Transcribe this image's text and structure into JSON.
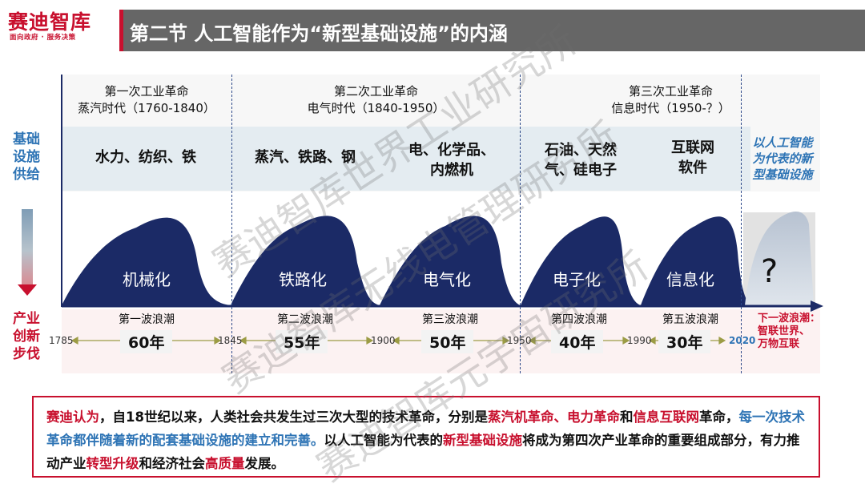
{
  "brand": {
    "name": "赛迪智库",
    "tagline": "面向政府 · 服务决策"
  },
  "title": "第二节  人工智能作为“新型基础设施”的内涵",
  "side_labels": {
    "top": [
      "基础",
      "设施",
      "供给"
    ],
    "bottom": [
      "产业",
      "创新",
      "步伐"
    ]
  },
  "eras": [
    {
      "name": "第一次工业革命",
      "period": "蒸汽时代（1760-1840）"
    },
    {
      "name": "第二次工业革命",
      "period": "电气时代（1840-1950）"
    },
    {
      "name": "第三次工业革命",
      "period": "信息时代（1950-？）"
    }
  ],
  "infrastructure": [
    {
      "text": "水力、纺织、铁"
    },
    {
      "text": "蒸汽、铁路、钢"
    },
    {
      "line1": "电、化学品、",
      "line2": "内燃机"
    },
    {
      "line1": "石油、天然",
      "line2": "气、硅电子"
    },
    {
      "line1": "互联网",
      "line2": "软件"
    },
    {
      "line1": "以人工智能",
      "line2": "为代表的新",
      "line3": "型基础设施"
    }
  ],
  "waves": [
    {
      "label": "机械化",
      "name": "第一波浪潮",
      "duration": "60年"
    },
    {
      "label": "铁路化",
      "name": "第二波浪潮",
      "duration": "55年"
    },
    {
      "label": "电气化",
      "name": "第三波浪潮",
      "duration": "50年"
    },
    {
      "label": "电子化",
      "name": "第四波浪潮",
      "duration": "40年"
    },
    {
      "label": "信息化",
      "name": "第五波浪潮",
      "duration": "30年"
    },
    {
      "label": "?"
    }
  ],
  "years": [
    "1785",
    "1845",
    "1900",
    "1950",
    "1990",
    "2020"
  ],
  "next_wave": {
    "line1": "下一波浪潮：",
    "line2": "智联世界、",
    "line3": "万物互联"
  },
  "summary": {
    "s1": "赛迪认为",
    "s2": "，自18世纪以来，人类社会共发生过三次大型的技术革命，分别是",
    "s3": "蒸汽机革命、电力革命",
    "s4": "和",
    "s5": "信息互联网",
    "s6": "革命，",
    "s7": "每一次技术革命都伴随着新的配套基础设施的建立和完善。",
    "s8": "以人工智能为代表的",
    "s9": "新型基础设施",
    "s10": "将成为第四次产业革命的重要组成部分，有力推动产业",
    "s11": "转型升级",
    "s12": "和经济社会",
    "s13": "高质量",
    "s14": "发展。"
  },
  "watermark": [
    "赛迪智库元宇宙研究所",
    "赛迪智库无线电管理研究所",
    "赛迪智库世界工业研究所"
  ],
  "colors": {
    "accent_red": "#c8102e",
    "navy": "#1b2a66",
    "blue": "#2e74b5",
    "header_gray": "#666666"
  }
}
